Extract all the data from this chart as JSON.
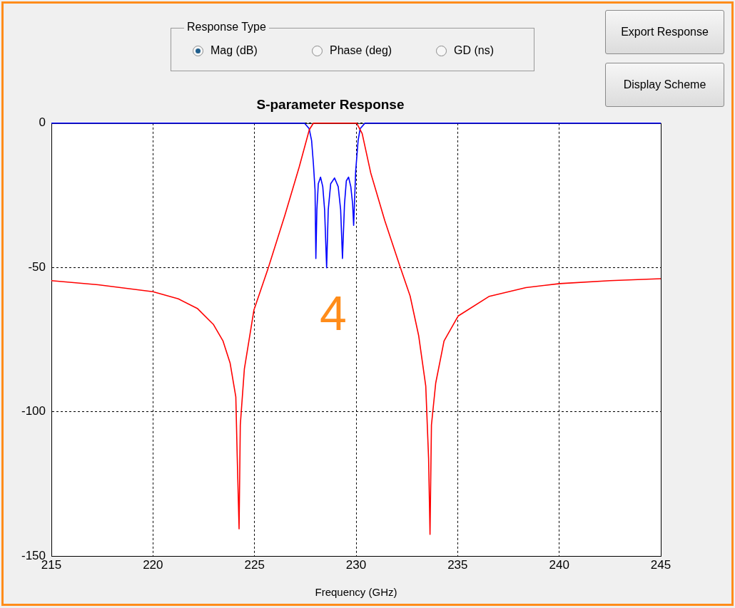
{
  "chart_data": {
    "type": "line",
    "title": "S-parameter Response",
    "xlabel": "Frequency (GHz)",
    "xlim": [
      215,
      245
    ],
    "xticks": [
      215,
      220,
      225,
      230,
      235,
      240,
      245
    ],
    "ylim": [
      -150,
      0
    ],
    "yticks": [
      -150,
      -100,
      -50,
      0
    ],
    "grid": true,
    "legend": false,
    "marker": "none",
    "line_style": "solid",
    "annotations": [
      "Response Type",
      "Mag (dB)",
      "Phase (deg)",
      "GD (ns)",
      "Export Response",
      "Display Scheme",
      "4"
    ],
    "series": [
      {
        "color": "#ff0000",
        "x": [
          215,
          217.3,
          220,
          221.25,
          222.2,
          222.97,
          223.45,
          223.8,
          224.08,
          224.15,
          224.24,
          224.3,
          224.5,
          224.97,
          225.67,
          226.5,
          227.2,
          227.7,
          227.9,
          230.03,
          230.3,
          230.72,
          231.41,
          232.17,
          232.66,
          233.08,
          233.43,
          233.57,
          233.64,
          233.71,
          233.92,
          234.33,
          235.03,
          236.56,
          238.36,
          240.03,
          242.5,
          245
        ],
        "values": [
          -54.6,
          -56,
          -58.4,
          -60.9,
          -64.3,
          -69.7,
          -75.5,
          -83.2,
          -94.9,
          -116,
          -140.6,
          -104.6,
          -85.2,
          -64.8,
          -50.3,
          -31.8,
          -15.2,
          -2.2,
          0,
          0,
          -3.6,
          -17.2,
          -33.7,
          -49.8,
          -59.9,
          -73.6,
          -91.1,
          -116.3,
          -142.5,
          -104.6,
          -90.1,
          -75.5,
          -66.8,
          -60,
          -57,
          -55.6,
          -54.6,
          -53.9
        ]
      },
      {
        "color": "#0000ff",
        "x": [
          215,
          227.46,
          227.69,
          227.81,
          227.9,
          227.98,
          228.02,
          228.07,
          228.14,
          228.25,
          228.36,
          228.45,
          228.55,
          228.63,
          228.75,
          228.94,
          229.12,
          229.24,
          229.33,
          229.43,
          229.52,
          229.63,
          229.74,
          229.83,
          229.88,
          229.98,
          230.1,
          230.2,
          230.44,
          245
        ],
        "values": [
          0,
          0,
          -1.9,
          -6,
          -14.2,
          -23.2,
          -46.9,
          -30,
          -21,
          -18.7,
          -22,
          -30,
          -50.1,
          -30,
          -21,
          -19,
          -22,
          -30,
          -46.9,
          -28,
          -20,
          -18.7,
          -22,
          -28,
          -35.4,
          -16.6,
          -6,
          -1.9,
          0,
          0
        ]
      }
    ]
  }
}
